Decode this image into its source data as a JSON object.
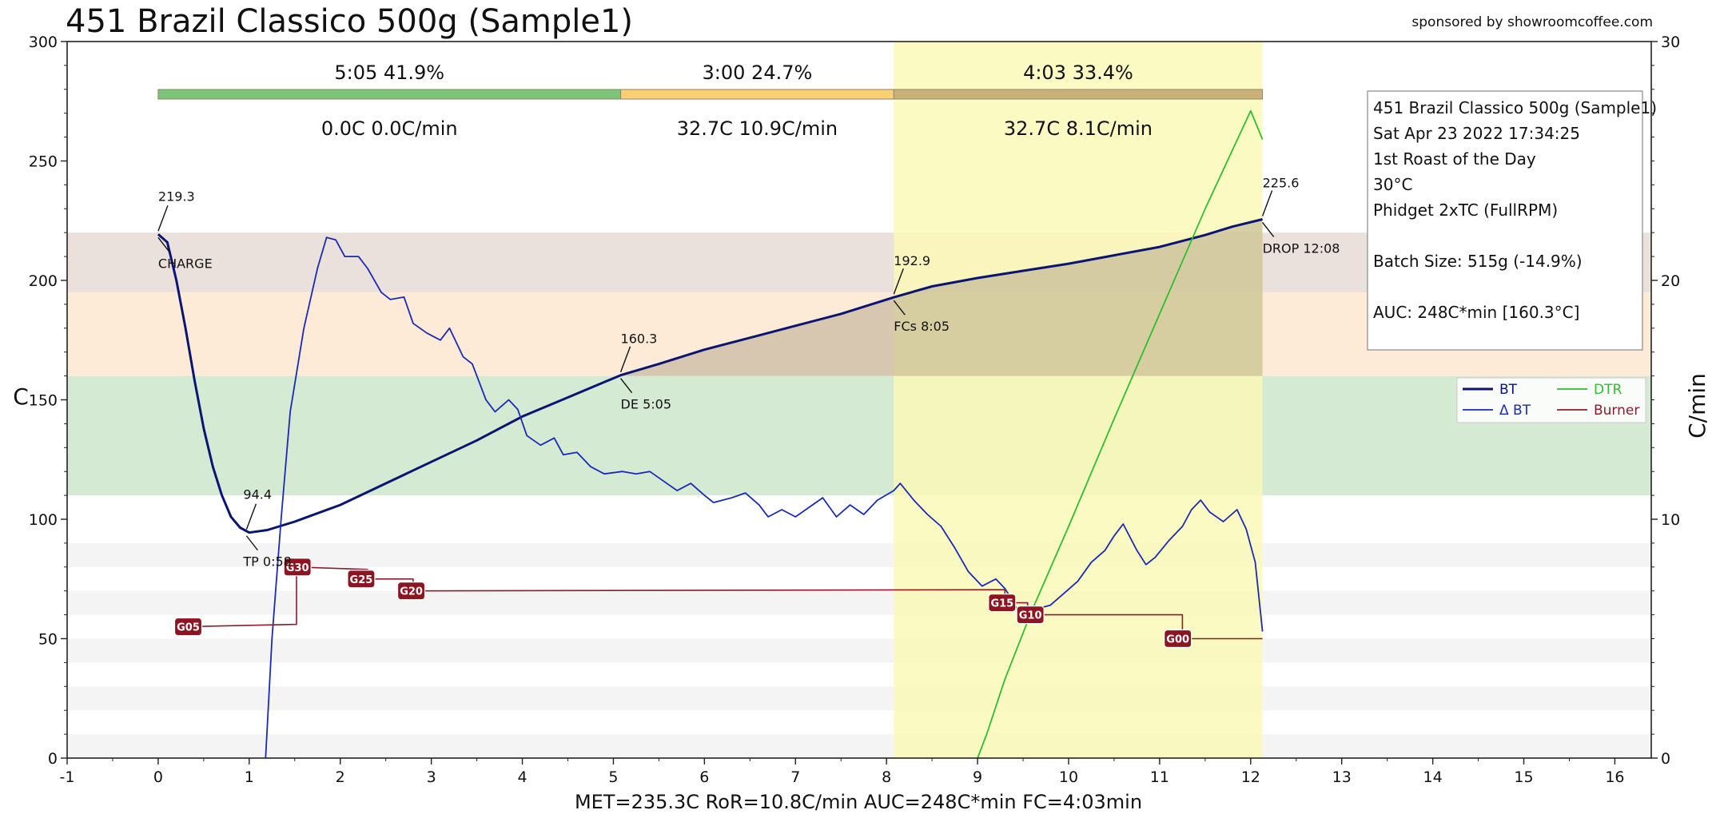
{
  "chart_data": {
    "type": "line",
    "title": "451 Brazil Classico 500g (Sample1)",
    "sponsor": "sponsored by showroomcoffee.com",
    "xlabel": "",
    "ylabel": "C",
    "y2label": "C/min",
    "xlim": [
      -1,
      16.4
    ],
    "ylim": [
      0,
      300
    ],
    "y2lim": [
      0,
      30
    ],
    "x_ticks": [
      -1,
      0,
      1,
      2,
      3,
      4,
      5,
      6,
      7,
      8,
      9,
      10,
      11,
      12,
      13,
      14,
      15,
      16
    ],
    "y_ticks": [
      0,
      50,
      100,
      150,
      200,
      250,
      300
    ],
    "y2_ticks": [
      0,
      10,
      20,
      30
    ],
    "grid": false,
    "bands": [
      {
        "y0": 110,
        "y1": 160,
        "color": "#d5ead3"
      },
      {
        "y0": 160,
        "y1": 195,
        "color": "#fdebd7"
      },
      {
        "y0": 195,
        "y1": 220,
        "color": "#ebe1dc"
      }
    ],
    "stripes": [
      [
        0,
        10
      ],
      [
        20,
        30
      ],
      [
        40,
        50
      ],
      [
        60,
        70
      ],
      [
        80,
        90
      ]
    ],
    "highlight": {
      "x0": 8.08,
      "x1": 12.13,
      "color": "#fbf9b6"
    },
    "phases": [
      {
        "x0": 0,
        "x1": 5.08,
        "color": "#7cc47a",
        "top": "5:05  41.9%",
        "bottom": "0.0C  0.0C/min"
      },
      {
        "x0": 5.08,
        "x1": 8.08,
        "color": "#fbcf74",
        "top": "3:00  24.7%",
        "bottom": "32.7C  10.9C/min"
      },
      {
        "x0": 8.08,
        "x1": 12.13,
        "color": "#c9b178",
        "top": "4:03  33.4%",
        "bottom": "32.7C  8.1C/min"
      }
    ],
    "series": [
      {
        "name": "BT",
        "color": "#0a1472",
        "axis": "left",
        "points": [
          [
            0,
            219.3
          ],
          [
            0.1,
            216
          ],
          [
            0.2,
            200
          ],
          [
            0.3,
            180
          ],
          [
            0.4,
            158
          ],
          [
            0.5,
            138
          ],
          [
            0.6,
            122
          ],
          [
            0.7,
            110
          ],
          [
            0.8,
            101
          ],
          [
            0.9,
            96.5
          ],
          [
            1.0,
            94.4
          ],
          [
            1.2,
            95.5
          ],
          [
            1.5,
            99
          ],
          [
            2,
            106
          ],
          [
            2.5,
            115
          ],
          [
            3,
            124
          ],
          [
            3.5,
            133
          ],
          [
            4,
            143
          ],
          [
            4.5,
            151
          ],
          [
            5.08,
            160.3
          ],
          [
            5.5,
            165
          ],
          [
            6,
            171
          ],
          [
            6.5,
            176
          ],
          [
            7,
            181
          ],
          [
            7.5,
            186
          ],
          [
            8.08,
            192.9
          ],
          [
            8.5,
            197.5
          ],
          [
            9,
            201
          ],
          [
            9.5,
            204
          ],
          [
            10,
            207
          ],
          [
            10.5,
            210.5
          ],
          [
            11,
            214
          ],
          [
            11.5,
            219
          ],
          [
            11.8,
            222.5
          ],
          [
            12.13,
            225.6
          ]
        ]
      },
      {
        "name": "Δ BT",
        "color": "#1a2ab8",
        "axis": "right",
        "points": [
          [
            1.18,
            0
          ],
          [
            1.25,
            5
          ],
          [
            1.35,
            10
          ],
          [
            1.45,
            14.5
          ],
          [
            1.6,
            18
          ],
          [
            1.75,
            20.5
          ],
          [
            1.85,
            21.8
          ],
          [
            1.95,
            21.7
          ],
          [
            2.05,
            21
          ],
          [
            2.2,
            21
          ],
          [
            2.3,
            20.5
          ],
          [
            2.45,
            19.5
          ],
          [
            2.55,
            19.2
          ],
          [
            2.7,
            19.3
          ],
          [
            2.8,
            18.2
          ],
          [
            2.95,
            17.8
          ],
          [
            3.1,
            17.5
          ],
          [
            3.2,
            18
          ],
          [
            3.35,
            16.8
          ],
          [
            3.45,
            16.5
          ],
          [
            3.6,
            15
          ],
          [
            3.7,
            14.5
          ],
          [
            3.85,
            15
          ],
          [
            3.95,
            14.6
          ],
          [
            4.05,
            13.5
          ],
          [
            4.2,
            13.1
          ],
          [
            4.35,
            13.4
          ],
          [
            4.45,
            12.7
          ],
          [
            4.6,
            12.8
          ],
          [
            4.75,
            12.2
          ],
          [
            4.9,
            11.9
          ],
          [
            5.1,
            12
          ],
          [
            5.25,
            11.9
          ],
          [
            5.4,
            12
          ],
          [
            5.55,
            11.6
          ],
          [
            5.7,
            11.2
          ],
          [
            5.85,
            11.5
          ],
          [
            6,
            11
          ],
          [
            6.1,
            10.7
          ],
          [
            6.3,
            10.9
          ],
          [
            6.45,
            11.1
          ],
          [
            6.6,
            10.6
          ],
          [
            6.7,
            10.1
          ],
          [
            6.85,
            10.4
          ],
          [
            7,
            10.1
          ],
          [
            7.15,
            10.5
          ],
          [
            7.3,
            10.9
          ],
          [
            7.45,
            10.1
          ],
          [
            7.6,
            10.6
          ],
          [
            7.75,
            10.2
          ],
          [
            7.9,
            10.8
          ],
          [
            8.08,
            11.2
          ],
          [
            8.15,
            11.5
          ],
          [
            8.3,
            10.8
          ],
          [
            8.45,
            10.2
          ],
          [
            8.6,
            9.7
          ],
          [
            8.75,
            8.8
          ],
          [
            8.9,
            7.8
          ],
          [
            9.05,
            7.2
          ],
          [
            9.2,
            7.5
          ],
          [
            9.3,
            7.1
          ],
          [
            9.4,
            6.5
          ],
          [
            9.5,
            5.7
          ],
          [
            9.6,
            6.2
          ],
          [
            9.8,
            6.4
          ],
          [
            9.95,
            6.9
          ],
          [
            10.1,
            7.4
          ],
          [
            10.25,
            8.2
          ],
          [
            10.4,
            8.7
          ],
          [
            10.5,
            9.3
          ],
          [
            10.6,
            9.8
          ],
          [
            10.75,
            8.7
          ],
          [
            10.85,
            8.1
          ],
          [
            10.95,
            8.4
          ],
          [
            11.1,
            9.1
          ],
          [
            11.25,
            9.7
          ],
          [
            11.35,
            10.4
          ],
          [
            11.45,
            10.8
          ],
          [
            11.55,
            10.3
          ],
          [
            11.7,
            9.9
          ],
          [
            11.85,
            10.4
          ],
          [
            11.95,
            9.6
          ],
          [
            12.05,
            8.2
          ],
          [
            12.13,
            5.3
          ]
        ]
      },
      {
        "name": "DTR",
        "color": "#2dbf2d",
        "axis": "right",
        "points": [
          [
            9.0,
            0
          ],
          [
            9.1,
            1
          ],
          [
            9.3,
            3.3
          ],
          [
            9.6,
            6.2
          ],
          [
            10,
            9.7
          ],
          [
            10.5,
            14.2
          ],
          [
            11,
            18.6
          ],
          [
            11.5,
            23
          ],
          [
            12,
            27.1
          ],
          [
            12.13,
            25.9
          ]
        ]
      },
      {
        "name": "Burner",
        "color": "#8c1c2a",
        "axis": "left",
        "step": true,
        "points": [
          [
            0.3,
            55
          ],
          [
            1.52,
            56
          ],
          [
            1.52,
            80
          ],
          [
            2.3,
            79
          ],
          [
            2.3,
            75
          ],
          [
            2.8,
            75
          ],
          [
            2.8,
            70
          ],
          [
            9.3,
            70.5
          ],
          [
            9.3,
            65
          ],
          [
            9.55,
            65
          ],
          [
            9.55,
            60
          ],
          [
            11.25,
            60
          ],
          [
            11.25,
            50
          ],
          [
            12.13,
            50
          ]
        ]
      }
    ],
    "markers": [
      {
        "label": "CHARGE",
        "value": "219.3",
        "x": 0,
        "y": 219.3
      },
      {
        "label": "TP 0:58",
        "value": "94.4",
        "x": 0.97,
        "y": 94.4
      },
      {
        "label": "DE 5:05",
        "value": "160.3",
        "x": 5.08,
        "y": 160.3
      },
      {
        "label": "FCs 8:05",
        "value": "192.9",
        "x": 8.08,
        "y": 192.9
      },
      {
        "label": "DROP 12:08",
        "value": "225.6",
        "x": 12.13,
        "y": 225.6
      }
    ],
    "events": [
      {
        "label": "G05",
        "x": 0.33,
        "y": 55
      },
      {
        "label": "G30",
        "x": 1.53,
        "y": 80
      },
      {
        "label": "G25",
        "x": 2.23,
        "y": 75
      },
      {
        "label": "G20",
        "x": 2.78,
        "y": 70
      },
      {
        "label": "G15",
        "x": 9.27,
        "y": 65
      },
      {
        "label": "G10",
        "x": 9.58,
        "y": 60
      },
      {
        "label": "G00",
        "x": 11.2,
        "y": 50
      }
    ],
    "info_box": [
      "451 Brazil Classico 500g (Sample1)",
      "Sat Apr 23 2022 17:34:25",
      "1st Roast of the Day",
      "30°C",
      "Phidget 2xTC (FullRPM)",
      "",
      "Batch Size: 515g (-14.9%)",
      "",
      "AUC: 248C*min [160.3°C]"
    ],
    "legend": {
      "position": "right",
      "entries": [
        "BT",
        "Δ BT",
        "DTR",
        "Burner"
      ]
    },
    "footer": "MET=235.3C   RoR=10.8C/min   AUC=248C*min   FC=4:03min"
  }
}
